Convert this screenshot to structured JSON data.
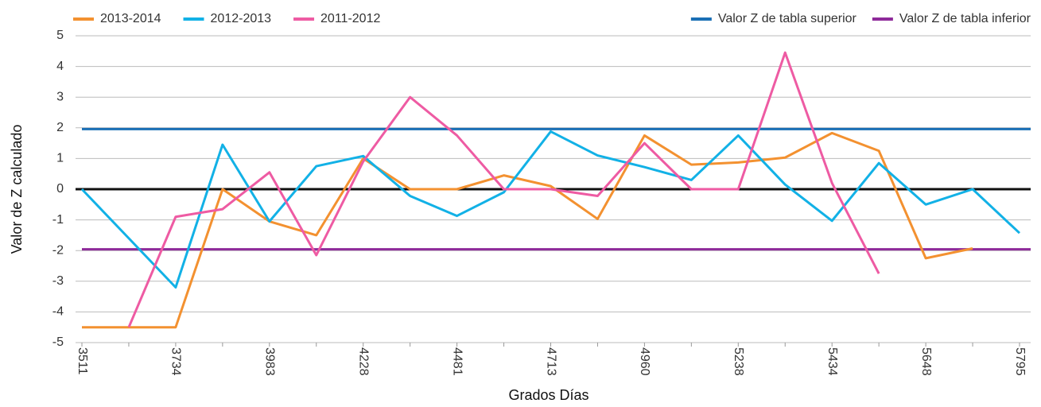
{
  "chart_data": {
    "type": "line",
    "x_label": "Grados Días",
    "y_label": "Valor de Z calculado",
    "categories": [
      "3511",
      null,
      "3734",
      null,
      "3983",
      null,
      "4228",
      null,
      "4481",
      null,
      "4713",
      null,
      "4960",
      null,
      "5238",
      null,
      "5434",
      null,
      "5648",
      null,
      "5795"
    ],
    "series": [
      {
        "name": "2013-2014",
        "color": "#f39130",
        "values": [
          -4.5,
          -4.5,
          -4.5,
          0,
          -1.05,
          -1.5,
          1.0,
          0,
          0,
          0.45,
          0.1,
          -0.97,
          1.75,
          0.8,
          0.87,
          1.03,
          1.83,
          1.25,
          -2.25,
          -1.93,
          null
        ]
      },
      {
        "name": "2012-2013",
        "color": "#12b1e6",
        "values": [
          0,
          -1.6,
          -3.2,
          1.45,
          -1.05,
          0.75,
          1.08,
          -0.22,
          -0.87,
          -0.1,
          1.88,
          1.1,
          0.72,
          0.3,
          1.75,
          0.15,
          -1.03,
          0.85,
          -0.5,
          0,
          -1.43
        ]
      },
      {
        "name": "2011-2012",
        "color": "#ee5ba3",
        "values": [
          null,
          -4.5,
          -0.9,
          -0.65,
          0.55,
          -2.15,
          0.9,
          3.0,
          1.75,
          0,
          0,
          -0.22,
          1.5,
          0,
          0,
          4.45,
          0.2,
          -2.75,
          null,
          null,
          null
        ]
      }
    ],
    "reference_lines": [
      {
        "name": "Valor Z de tabla superior",
        "color": "#1a6fb5",
        "value": 1.96
      },
      {
        "name": "Valor Z de tabla inferior",
        "color": "#8e2a9a",
        "value": -1.96
      }
    ],
    "ylim": [
      -5,
      5
    ],
    "yticks": [
      -5,
      -4,
      -3,
      -2,
      -1,
      0,
      1,
      2,
      3,
      4,
      5
    ],
    "grid": true
  }
}
